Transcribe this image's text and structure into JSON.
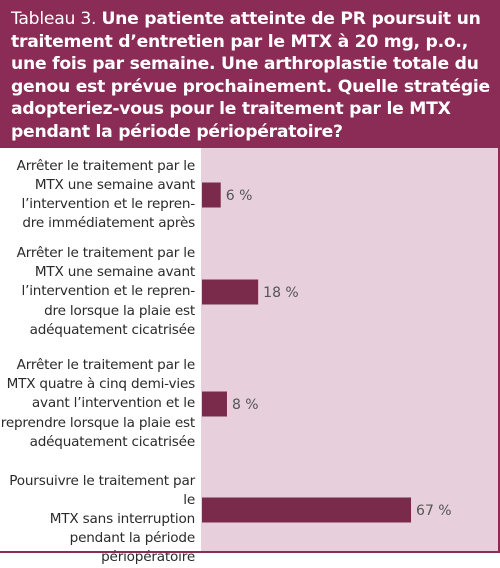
{
  "header": {
    "label": "Tableau 3.",
    "question": "Une patiente atteinte de PR poursuit un traitement d’entretien par le MTX à 20 mg, p.o., une fois par semaine. Une arthroplastie totale du genou est prévue prochainement. Quelle stratégie adopteriez-vous pour le traitement par le MTX pendant la période périopératoire?"
  },
  "colors": {
    "header_bg": "#8b2c56",
    "plot_bg": "#e7d0db",
    "bar_fill": "#7a2a4a"
  },
  "chart_data": {
    "type": "bar",
    "orientation": "horizontal",
    "categories": [
      [
        "Arrêter le traitement par le",
        "MTX une semaine avant",
        "l’intervention et le repren-",
        "dre immédiatement après"
      ],
      [
        "Arrêter le traitement par le",
        "MTX une semaine avant",
        "l’intervention et le repren-",
        "dre lorsque la plaie est",
        "adéquatement cicatrisée"
      ],
      [
        "Arrêter le traitement par le",
        "MTX quatre à cinq demi-vies",
        "avant l’intervention et le",
        "reprendre lorsque la plaie est",
        "adéquatement cicatrisée"
      ],
      [
        "Poursuivre le traitement par le",
        "MTX sans interruption",
        "pendant la période",
        "périopératoire"
      ]
    ],
    "values": [
      6,
      18,
      8,
      67
    ],
    "value_labels": [
      "6 %",
      "18 %",
      "8 %",
      "67 %"
    ],
    "xlim": [
      0,
      100
    ],
    "grid": false,
    "legend": "none"
  }
}
